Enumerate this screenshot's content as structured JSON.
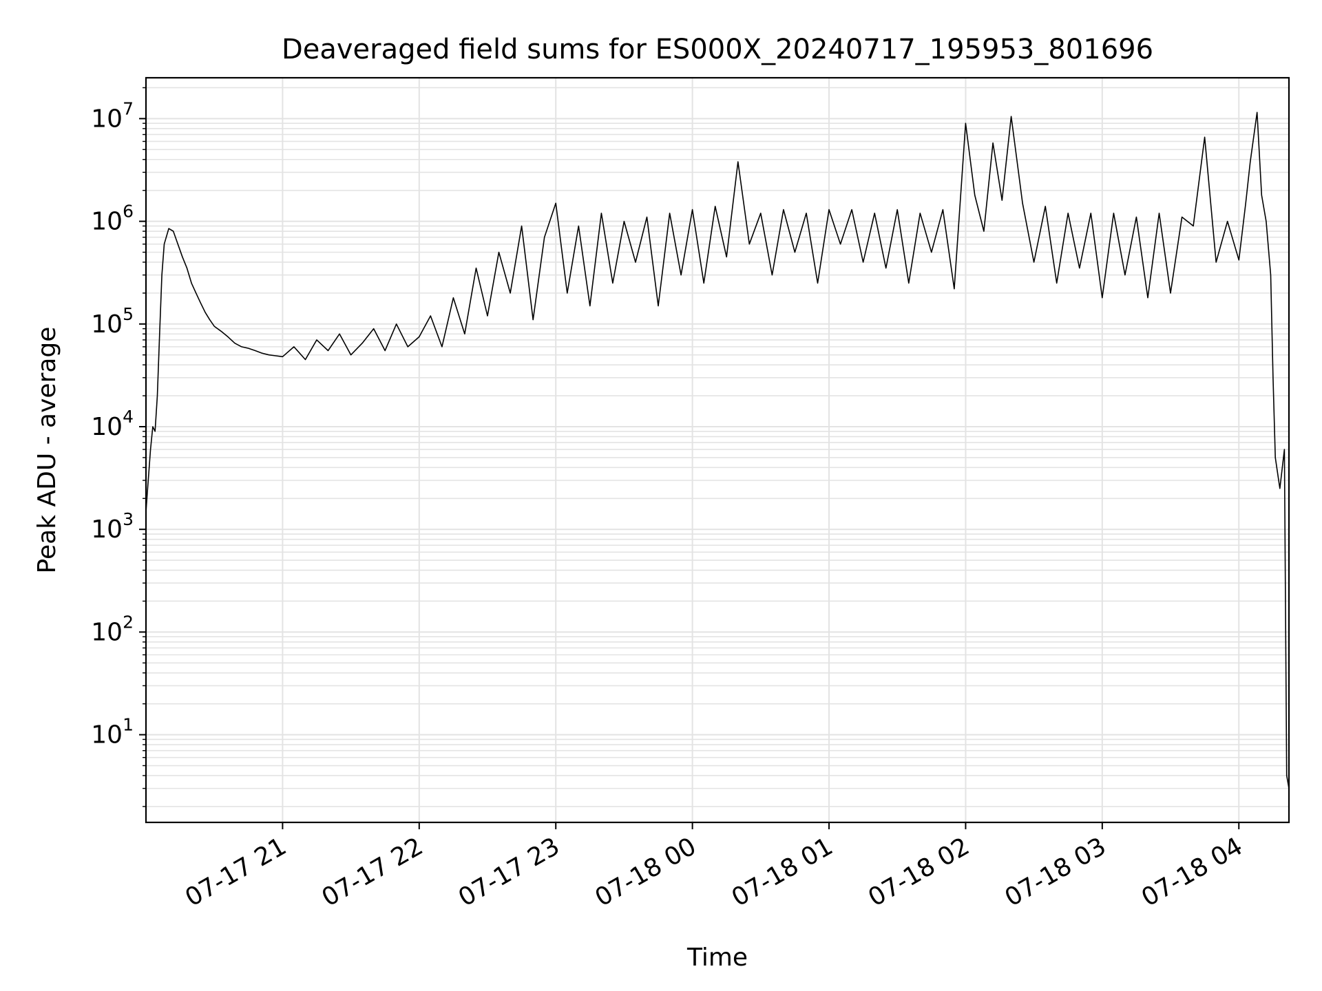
{
  "chart_data": {
    "type": "line",
    "title": "Deaveraged field sums for ES000X_20240717_195953_801696",
    "xlabel": "Time",
    "ylabel": "Peak ADU - average",
    "yscale": "log",
    "grid": true,
    "x_tick_labels": [
      "07-17 21",
      "07-17 22",
      "07-17 23",
      "07-18 00",
      "07-18 01",
      "07-18 02",
      "07-18 03",
      "07-18 04"
    ],
    "x_ticks": [
      "2024-07-17 21:00",
      "2024-07-17 22:00",
      "2024-07-17 23:00",
      "2024-07-18 00:00",
      "2024-07-18 01:00",
      "2024-07-18 02:00",
      "2024-07-18 03:00",
      "2024-07-18 04:00"
    ],
    "xlim": [
      "2024-07-17 20:00",
      "2024-07-18 04:22"
    ],
    "y_tick_values": [
      10,
      100,
      1000,
      10000,
      100000,
      1000000,
      10000000
    ],
    "y_tick_bases": [
      "10",
      "10",
      "10",
      "10",
      "10",
      "10",
      "10"
    ],
    "y_tick_exponents": [
      "1",
      "2",
      "3",
      "4",
      "5",
      "6",
      "7"
    ],
    "ylim": [
      1.4,
      25000000
    ],
    "line_color": "#000000",
    "series": [
      {
        "x": [
          "2024-07-17 20:00",
          "2024-07-17 20:01",
          "2024-07-17 20:02",
          "2024-07-17 20:03",
          "2024-07-17 20:04",
          "2024-07-17 20:05",
          "2024-07-17 20:06",
          "2024-07-17 20:07",
          "2024-07-17 20:08",
          "2024-07-17 20:10",
          "2024-07-17 20:12",
          "2024-07-17 20:14",
          "2024-07-17 20:16",
          "2024-07-17 20:18",
          "2024-07-17 20:20",
          "2024-07-17 20:22",
          "2024-07-17 20:24",
          "2024-07-17 20:26",
          "2024-07-17 20:28",
          "2024-07-17 20:30",
          "2024-07-17 20:33",
          "2024-07-17 20:36",
          "2024-07-17 20:39",
          "2024-07-17 20:42",
          "2024-07-17 20:45",
          "2024-07-17 20:48",
          "2024-07-17 20:51",
          "2024-07-17 20:54",
          "2024-07-17 20:57",
          "2024-07-17 21:00",
          "2024-07-17 21:05",
          "2024-07-17 21:10",
          "2024-07-17 21:15",
          "2024-07-17 21:20",
          "2024-07-17 21:25",
          "2024-07-17 21:30",
          "2024-07-17 21:35",
          "2024-07-17 21:40",
          "2024-07-17 21:45",
          "2024-07-17 21:50",
          "2024-07-17 21:55",
          "2024-07-17 22:00",
          "2024-07-17 22:05",
          "2024-07-17 22:10",
          "2024-07-17 22:15",
          "2024-07-17 22:20",
          "2024-07-17 22:25",
          "2024-07-17 22:30",
          "2024-07-17 22:35",
          "2024-07-17 22:40",
          "2024-07-17 22:45",
          "2024-07-17 22:50",
          "2024-07-17 22:55",
          "2024-07-17 23:00",
          "2024-07-17 23:05",
          "2024-07-17 23:10",
          "2024-07-17 23:15",
          "2024-07-17 23:20",
          "2024-07-17 23:25",
          "2024-07-17 23:30",
          "2024-07-17 23:35",
          "2024-07-17 23:40",
          "2024-07-17 23:45",
          "2024-07-17 23:50",
          "2024-07-17 23:55",
          "2024-07-18 00:00",
          "2024-07-18 00:05",
          "2024-07-18 00:10",
          "2024-07-18 00:15",
          "2024-07-18 00:20",
          "2024-07-18 00:25",
          "2024-07-18 00:30",
          "2024-07-18 00:35",
          "2024-07-18 00:40",
          "2024-07-18 00:45",
          "2024-07-18 00:50",
          "2024-07-18 00:55",
          "2024-07-18 01:00",
          "2024-07-18 01:05",
          "2024-07-18 01:10",
          "2024-07-18 01:15",
          "2024-07-18 01:20",
          "2024-07-18 01:25",
          "2024-07-18 01:30",
          "2024-07-18 01:35",
          "2024-07-18 01:40",
          "2024-07-18 01:45",
          "2024-07-18 01:50",
          "2024-07-18 01:55",
          "2024-07-18 02:00",
          "2024-07-18 02:04",
          "2024-07-18 02:08",
          "2024-07-18 02:12",
          "2024-07-18 02:16",
          "2024-07-18 02:20",
          "2024-07-18 02:25",
          "2024-07-18 02:30",
          "2024-07-18 02:35",
          "2024-07-18 02:40",
          "2024-07-18 02:45",
          "2024-07-18 02:50",
          "2024-07-18 02:55",
          "2024-07-18 03:00",
          "2024-07-18 03:05",
          "2024-07-18 03:10",
          "2024-07-18 03:15",
          "2024-07-18 03:20",
          "2024-07-18 03:25",
          "2024-07-18 03:30",
          "2024-07-18 03:35",
          "2024-07-18 03:40",
          "2024-07-18 03:45",
          "2024-07-18 03:50",
          "2024-07-18 03:55",
          "2024-07-18 04:00",
          "2024-07-18 04:03",
          "2024-07-18 04:05",
          "2024-07-18 04:08",
          "2024-07-18 04:10",
          "2024-07-18 04:12",
          "2024-07-18 04:14",
          "2024-07-18 04:15",
          "2024-07-18 04:16",
          "2024-07-18 04:18",
          "2024-07-18 04:20",
          "2024-07-18 04:21",
          "2024-07-18 04:22"
        ],
        "y": [
          1500,
          3000,
          6000,
          10000,
          9000,
          20000,
          80000,
          300000,
          600000,
          850000,
          800000,
          600000,
          450000,
          350000,
          250000,
          200000,
          160000,
          130000,
          110000,
          95000,
          85000,
          75000,
          65000,
          60000,
          58000,
          55000,
          52000,
          50000,
          49000,
          48000,
          60000,
          45000,
          70000,
          55000,
          80000,
          50000,
          65000,
          90000,
          55000,
          100000,
          60000,
          75000,
          120000,
          60000,
          180000,
          80000,
          350000,
          120000,
          500000,
          200000,
          900000,
          110000,
          700000,
          1500000,
          200000,
          900000,
          150000,
          1200000,
          250000,
          1000000,
          400000,
          1100000,
          150000,
          1200000,
          300000,
          1300000,
          250000,
          1400000,
          450000,
          3800000,
          600000,
          1200000,
          300000,
          1300000,
          500000,
          1200000,
          250000,
          1300000,
          600000,
          1300000,
          400000,
          1200000,
          350000,
          1300000,
          250000,
          1200000,
          500000,
          1300000,
          220000,
          9000000,
          1800000,
          800000,
          5800000,
          1600000,
          10500000,
          1500000,
          400000,
          1400000,
          250000,
          1200000,
          350000,
          1200000,
          180000,
          1200000,
          300000,
          1100000,
          180000,
          1200000,
          200000,
          1100000,
          900000,
          6600000,
          400000,
          1000000,
          420000,
          1500000,
          3800000,
          11500000,
          1800000,
          1000000,
          300000,
          30000,
          5000,
          2500,
          6000,
          4,
          3
        ]
      }
    ]
  }
}
